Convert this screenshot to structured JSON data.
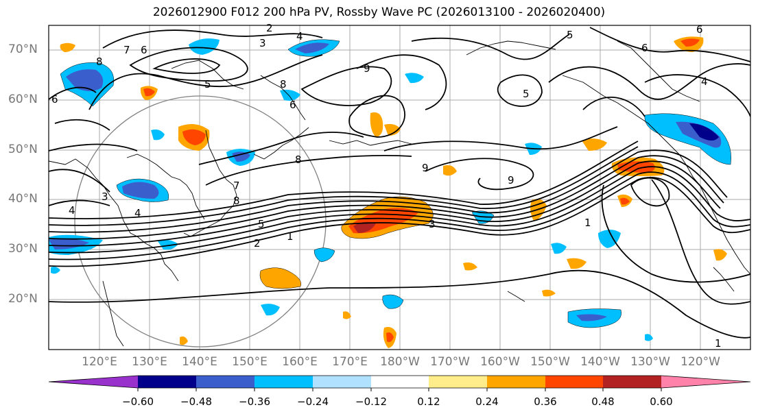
{
  "title": "2026012900 F012 200 hPa PV, Rossby Wave PC (2026013100 - 2026020400)",
  "lat_labels": [
    "70°N",
    "60°N",
    "50°N",
    "40°N",
    "30°N",
    "20°N"
  ],
  "lon_labels": [
    "120°E",
    "130°E",
    "140°E",
    "150°E",
    "160°E",
    "170°E",
    "180°W",
    "170°W",
    "160°W",
    "150°W",
    "140°W",
    "130°W",
    "120°W"
  ],
  "colorbar": {
    "tick_labels": [
      "−0.60",
      "−0.48",
      "−0.36",
      "−0.24",
      "−0.12",
      "0.12",
      "0.24",
      "0.36",
      "0.48",
      "0.60"
    ],
    "colors": [
      "#9932cc",
      "#00008b",
      "#3a5fcd",
      "#00bfff",
      "#b0e2ff",
      "#ffffff",
      "#ffec8b",
      "#ffa500",
      "#ff4500",
      "#b22222",
      "#ff82ab"
    ]
  },
  "contour_labels": [
    "8",
    "7",
    "6",
    "3",
    "4",
    "2",
    "5",
    "6",
    "3",
    "9",
    "5",
    "6",
    "4",
    "5",
    "8",
    "8",
    "4",
    "7",
    "8",
    "6",
    "9",
    "9",
    "2",
    "1",
    "3",
    "1",
    "5",
    "6",
    "4",
    "1"
  ]
}
